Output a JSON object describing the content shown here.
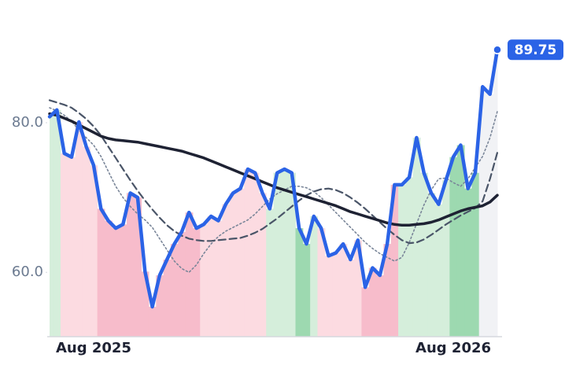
{
  "chart_data": {
    "type": "line",
    "categories": [
      null,
      null,
      null,
      null,
      null,
      null,
      "Aug 2025",
      null,
      null,
      null,
      null,
      null,
      null,
      null,
      null,
      null,
      null,
      null,
      null,
      null,
      null,
      null,
      null,
      null,
      null,
      null,
      null,
      null,
      null,
      null,
      null,
      null,
      null,
      null,
      null,
      null,
      null,
      null,
      null,
      null,
      null,
      null,
      null,
      null,
      null,
      null,
      null,
      null,
      null,
      null,
      null,
      null,
      null,
      null,
      null,
      "Aug 2026",
      null,
      null,
      null,
      null,
      null,
      null
    ],
    "series": [
      {
        "color": "#2b63e6",
        "values": [
          80.8,
          81.7,
          75.9,
          75.4,
          80.1,
          76.8,
          74.3,
          68.5,
          66.9,
          65.9,
          66.4,
          70.6,
          70.0,
          60.1,
          55.4,
          59.6,
          61.7,
          63.8,
          65.4,
          68.0,
          65.9,
          66.4,
          67.5,
          66.9,
          69.1,
          70.6,
          71.2,
          73.8,
          73.3,
          70.6,
          68.5,
          73.3,
          73.8,
          73.3,
          65.9,
          63.8,
          67.5,
          65.9,
          62.2,
          62.6,
          63.8,
          61.7,
          64.3,
          58.0,
          60.6,
          59.6,
          63.8,
          71.7,
          71.7,
          72.7,
          78.0,
          73.3,
          70.6,
          69.1,
          72.3,
          75.4,
          77.0,
          71.2,
          73.3,
          84.8,
          83.8,
          89.75
        ]
      },
      {
        "color": "#1e2233",
        "values": [
          81.2,
          81.0,
          80.6,
          80.2,
          79.7,
          79.2,
          78.7,
          78.2,
          77.9,
          77.7,
          77.6,
          77.5,
          77.4,
          77.2,
          77.0,
          76.8,
          76.6,
          76.4,
          76.2,
          75.9,
          75.6,
          75.3,
          74.9,
          74.5,
          74.1,
          73.7,
          73.3,
          72.9,
          72.5,
          72.1,
          71.7,
          71.3,
          71.0,
          70.7,
          70.4,
          70.1,
          69.8,
          69.5,
          69.2,
          68.9,
          68.5,
          68.1,
          67.8,
          67.5,
          67.2,
          66.9,
          66.6,
          66.4,
          66.3,
          66.3,
          66.4,
          66.5,
          66.7,
          67.0,
          67.4,
          67.8,
          68.2,
          68.5,
          68.7,
          68.9,
          69.4,
          70.3
        ]
      },
      {
        "color": "#4a5568",
        "values": [
          83.0,
          82.7,
          82.4,
          82.0,
          81.3,
          80.5,
          79.5,
          78.3,
          76.8,
          75.3,
          73.8,
          72.3,
          70.9,
          69.6,
          68.4,
          67.3,
          66.3,
          65.5,
          64.9,
          64.5,
          64.3,
          64.2,
          64.2,
          64.3,
          64.4,
          64.5,
          64.6,
          64.9,
          65.3,
          65.8,
          66.5,
          67.2,
          68.0,
          68.8,
          69.6,
          70.3,
          70.8,
          71.1,
          71.2,
          71.0,
          70.6,
          70.0,
          69.3,
          68.5,
          67.6,
          66.7,
          65.8,
          65.0,
          64.3,
          63.9,
          64.0,
          64.4,
          65.0,
          65.7,
          66.4,
          67.0,
          67.6,
          68.1,
          68.6,
          69.5,
          72.5,
          76.0
        ]
      },
      {
        "color": "#7a8699",
        "values": [
          82.0,
          81.6,
          81.0,
          80.2,
          79.0,
          78.0,
          77.0,
          75.5,
          73.5,
          71.5,
          70.0,
          68.8,
          67.8,
          67.0,
          66.0,
          64.5,
          63.0,
          61.5,
          60.5,
          60.0,
          61.0,
          62.5,
          63.8,
          64.8,
          65.5,
          66.0,
          66.5,
          67.0,
          67.8,
          68.8,
          69.8,
          70.5,
          71.0,
          71.5,
          71.5,
          71.3,
          70.8,
          70.0,
          69.0,
          68.0,
          67.0,
          66.0,
          65.0,
          64.0,
          63.2,
          62.5,
          62.0,
          61.5,
          62.0,
          64.0,
          66.5,
          69.0,
          71.0,
          72.5,
          72.6,
          72.0,
          71.5,
          72.5,
          74.0,
          75.5,
          78.0,
          81.5
        ]
      }
    ],
    "band_colors": [
      "#d5eedb",
      "#d5eedb",
      "#fcdbe1",
      "#fcdbe1",
      "#fcdbe1",
      "#fcdbe1",
      "#fcdbe1",
      "#f7bccb",
      "#f7bccb",
      "#f7bccb",
      "#f7bccb",
      "#f7bccb",
      "#f7bccb",
      "#f7bccb",
      "#f7bccb",
      "#f7bccb",
      "#f7bccb",
      "#f7bccb",
      "#f7bccb",
      "#f7bccb",
      "#f7bccb",
      "#fcdbe1",
      "#fcdbe1",
      "#fcdbe1",
      "#fcdbe1",
      "#fcdbe1",
      "#fcdbe1",
      "#fcdbe1",
      "#fcdbe1",
      "#fcdbe1",
      "#d5eedb",
      "#d5eedb",
      "#d5eedb",
      "#d5eedb",
      "#9dd9b0",
      "#9dd9b0",
      "#d5eedb",
      "#fcdbe1",
      "#fcdbe1",
      "#fcdbe1",
      "#fcdbe1",
      "#fcdbe1",
      "#fcdbe1",
      "#f7bccb",
      "#f7bccb",
      "#f7bccb",
      "#f7bccb",
      "#f7bccb",
      "#d5eedb",
      "#d5eedb",
      "#d5eedb",
      "#d5eedb",
      "#d5eedb",
      "#d5eedb",
      "#d5eedb",
      "#9dd9b0",
      "#9dd9b0",
      "#9dd9b0",
      "#9dd9b0",
      "#f1f2f5",
      "#f1f2f5",
      "#f1f2f5"
    ],
    "ylim": [
      51.4,
      96.4
    ],
    "yticks": [
      {
        "value": 60,
        "label": "60.0"
      },
      {
        "value": 80,
        "label": "80.0"
      }
    ]
  }
}
